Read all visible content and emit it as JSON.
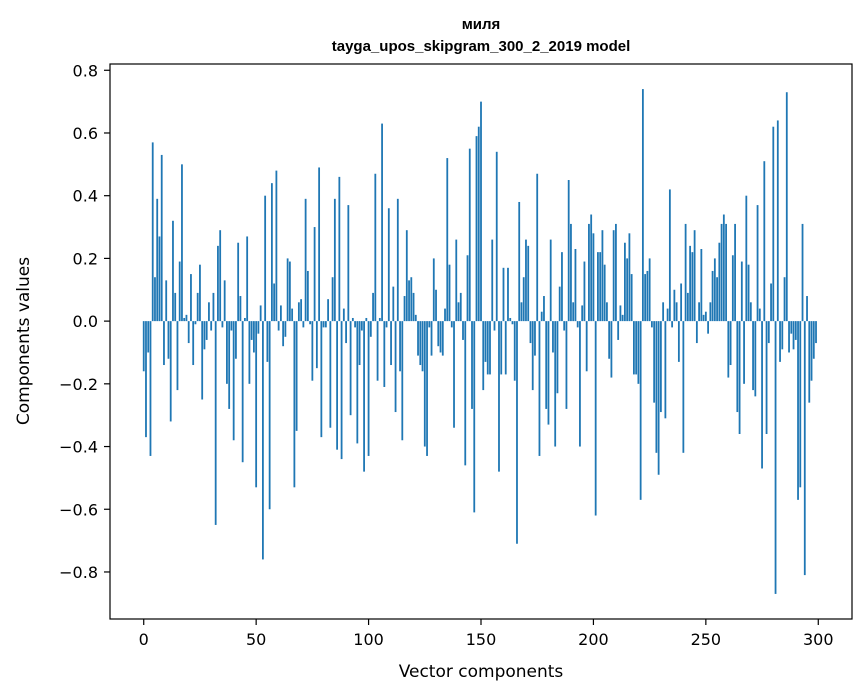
{
  "chart_data": {
    "type": "bar",
    "title": "миля",
    "subtitle": "tayga_upos_skipgram_300_2_2019 model",
    "xlabel": "Vector components",
    "ylabel": "Components values",
    "xlim": [
      -15,
      315
    ],
    "ylim": [
      -0.95,
      0.82
    ],
    "xticks": [
      0,
      50,
      100,
      150,
      200,
      250,
      300
    ],
    "xtick_labels": [
      "0",
      "50",
      "100",
      "150",
      "200",
      "250",
      "300"
    ],
    "yticks": [
      -0.8,
      -0.6,
      -0.4,
      -0.2,
      0.0,
      0.2,
      0.4,
      0.6,
      0.8
    ],
    "ytick_labels": [
      "−0.8",
      "−0.6",
      "−0.4",
      "−0.2",
      "0.0",
      "0.2",
      "0.4",
      "0.6",
      "0.8"
    ],
    "bar_color": "#1f77b4",
    "grid": false,
    "values": [
      -0.16,
      -0.37,
      -0.1,
      -0.43,
      0.57,
      0.14,
      0.39,
      0.27,
      0.53,
      -0.14,
      0.13,
      -0.12,
      -0.32,
      0.32,
      0.09,
      -0.22,
      0.19,
      0.5,
      0.01,
      0.02,
      -0.07,
      0.15,
      -0.14,
      -0.01,
      0.09,
      0.18,
      -0.25,
      -0.09,
      -0.06,
      0.06,
      -0.03,
      0.09,
      -0.65,
      0.24,
      0.29,
      -0.02,
      0.13,
      -0.2,
      -0.28,
      -0.03,
      -0.38,
      -0.12,
      0.25,
      0.08,
      -0.45,
      0.01,
      0.27,
      -0.2,
      -0.06,
      -0.1,
      -0.53,
      -0.04,
      0.05,
      -0.76,
      0.4,
      -0.13,
      -0.6,
      0.44,
      0.12,
      0.48,
      -0.03,
      0.05,
      -0.08,
      -0.05,
      0.2,
      0.19,
      0.04,
      -0.53,
      -0.35,
      0.06,
      0.07,
      -0.02,
      0.39,
      0.16,
      -0.01,
      -0.19,
      0.3,
      -0.15,
      0.49,
      -0.37,
      -0.02,
      -0.02,
      0.07,
      -0.34,
      0.14,
      0.39,
      -0.41,
      0.46,
      -0.44,
      0.04,
      -0.07,
      0.37,
      -0.3,
      0.01,
      -0.02,
      -0.39,
      -0.14,
      -0.03,
      -0.48,
      0.01,
      -0.43,
      -0.05,
      0.09,
      0.47,
      -0.19,
      0.01,
      0.63,
      -0.21,
      -0.02,
      0.36,
      -0.14,
      0.11,
      -0.29,
      0.39,
      -0.16,
      -0.38,
      0.08,
      0.29,
      0.13,
      0.14,
      0.09,
      0.02,
      -0.11,
      -0.14,
      -0.16,
      -0.4,
      -0.43,
      -0.02,
      -0.11,
      0.2,
      0.1,
      -0.08,
      -0.1,
      -0.11,
      0.04,
      0.52,
      0.18,
      -0.02,
      -0.34,
      0.26,
      0.06,
      0.09,
      -0.06,
      -0.46,
      0.21,
      0.55,
      -0.28,
      -0.61,
      0.59,
      0.62,
      0.7,
      -0.22,
      -0.13,
      -0.17,
      -0.17,
      0.26,
      -0.03,
      0.54,
      -0.48,
      -0.17,
      0.17,
      -0.17,
      0.17,
      0.01,
      -0.01,
      -0.19,
      -0.71,
      0.38,
      0.06,
      0.14,
      0.26,
      0.24,
      -0.07,
      -0.22,
      -0.11,
      0.47,
      -0.43,
      0.03,
      0.08,
      -0.28,
      -0.33,
      0.26,
      -0.1,
      -0.4,
      -0.23,
      0.11,
      0.22,
      -0.03,
      -0.28,
      0.45,
      0.31,
      0.06,
      0.23,
      -0.02,
      -0.4,
      0.05,
      0.19,
      -0.16,
      0.31,
      0.34,
      0.28,
      -0.62,
      0.22,
      0.22,
      0.29,
      0.18,
      0.06,
      -0.12,
      -0.18,
      0.29,
      0.31,
      -0.06,
      0.05,
      0.02,
      0.25,
      0.2,
      0.28,
      0.15,
      -0.17,
      -0.17,
      -0.2,
      -0.57,
      0.74,
      0.15,
      0.16,
      0.2,
      -0.02,
      -0.26,
      -0.42,
      -0.49,
      -0.29,
      0.06,
      -0.31,
      0.04,
      0.42,
      -0.02,
      0.1,
      0.06,
      -0.13,
      0.12,
      -0.42,
      0.31,
      0.09,
      0.24,
      0.22,
      0.29,
      -0.07,
      0.06,
      0.23,
      0.02,
      0.03,
      -0.04,
      0.06,
      0.16,
      0.2,
      0.14,
      0.25,
      0.31,
      0.34,
      0.31,
      -0.18,
      -0.14,
      0.21,
      0.31,
      -0.29,
      -0.36,
      0.19,
      -0.2,
      0.4,
      0.18,
      0.06,
      -0.22,
      -0.24,
      0.37,
      0.04,
      -0.47,
      0.51,
      -0.36,
      -0.07,
      0.12,
      0.62,
      -0.87,
      0.64,
      -0.13,
      -0.09,
      0.14,
      0.73,
      -0.1,
      -0.04,
      -0.09,
      -0.06,
      -0.57,
      -0.53,
      0.31,
      -0.81,
      0.08,
      -0.26,
      -0.19,
      -0.12,
      -0.07
    ]
  }
}
